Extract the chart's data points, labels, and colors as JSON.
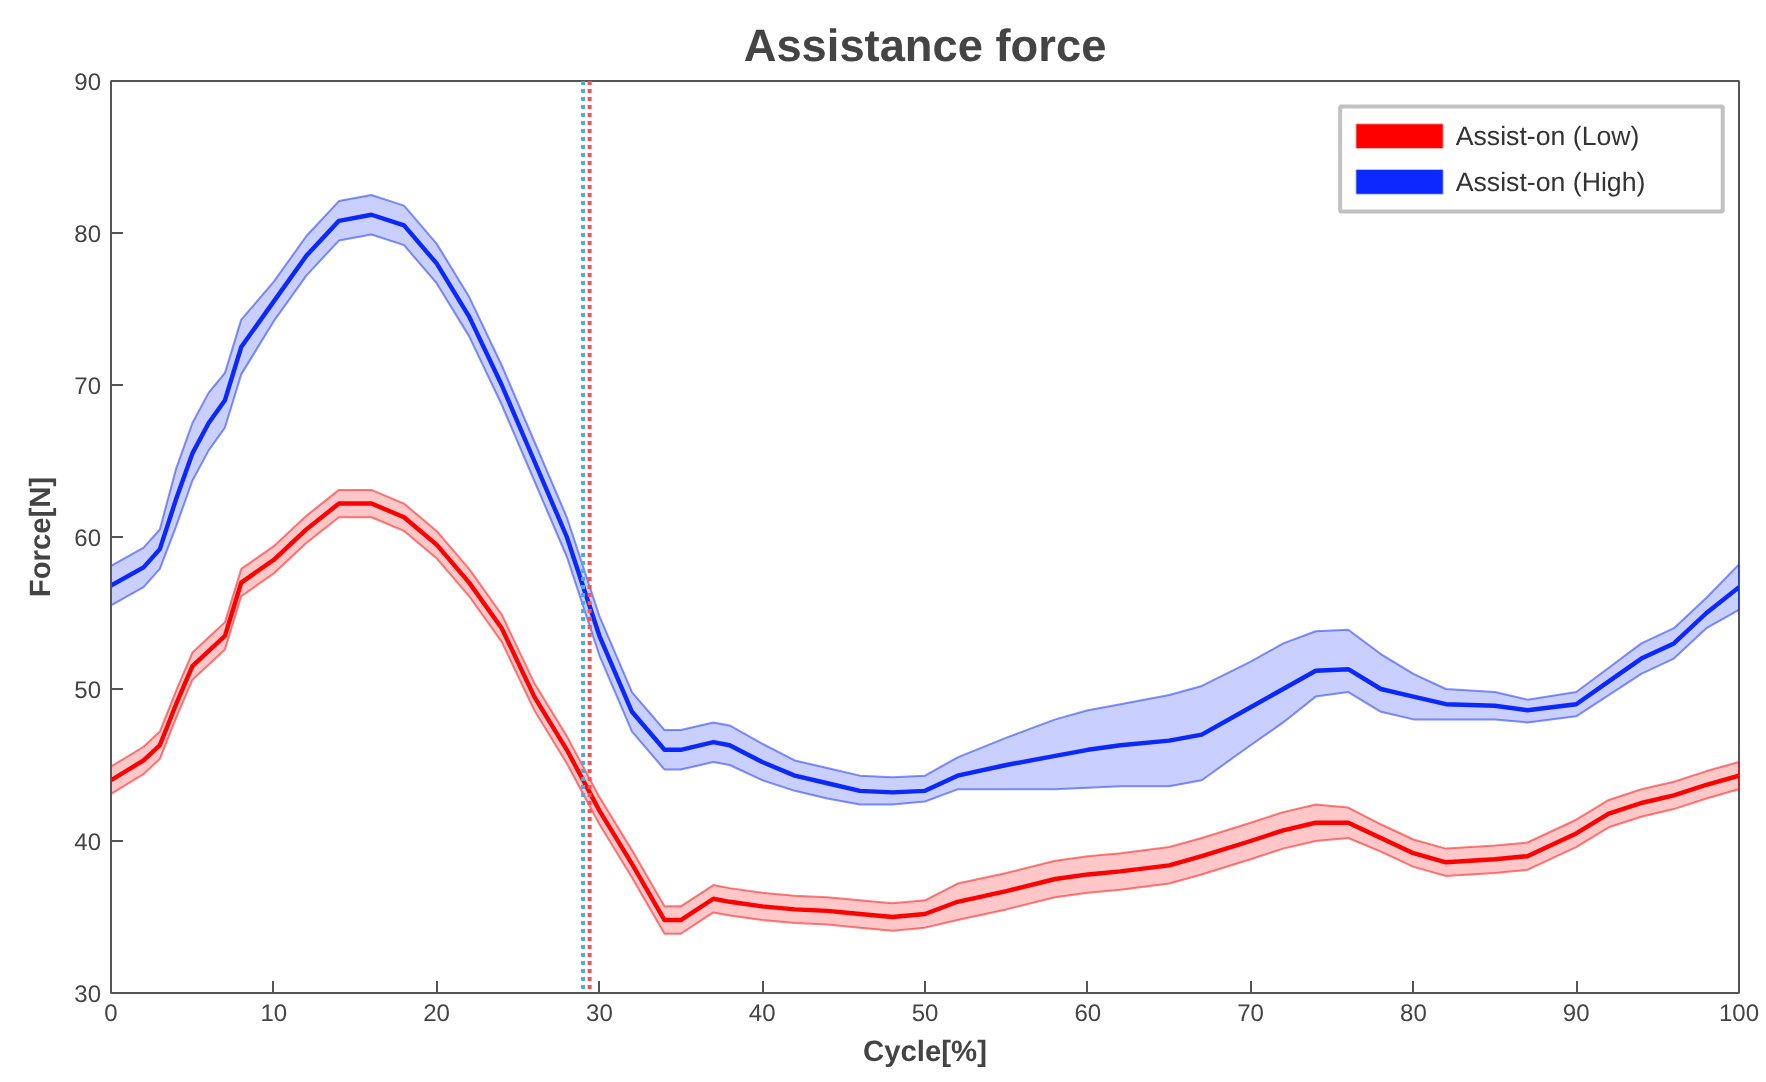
{
  "chart_data": {
    "type": "line",
    "title": "Assistance force",
    "xlabel": "Cycle[%]",
    "ylabel": "Force[N]",
    "xlim": [
      0,
      100
    ],
    "ylim": [
      30,
      90
    ],
    "xticks": [
      0,
      10,
      20,
      30,
      40,
      50,
      60,
      70,
      80,
      90,
      100
    ],
    "yticks": [
      30,
      40,
      50,
      60,
      70,
      80,
      90
    ],
    "grid": false,
    "legend": "top right",
    "line_style": "solid",
    "marker": "none",
    "x": [
      0,
      2,
      3,
      4,
      5,
      6,
      7,
      8,
      10,
      12,
      14,
      16,
      18,
      20,
      22,
      24,
      26,
      28,
      30,
      32,
      34,
      35,
      37,
      38,
      40,
      42,
      44,
      46,
      48,
      50,
      52,
      55,
      58,
      60,
      62,
      65,
      67,
      70,
      72,
      74,
      76,
      78,
      80,
      82,
      85,
      87,
      90,
      92,
      94,
      96,
      98,
      100
    ],
    "series": [
      {
        "name": "Assist-on (Low)",
        "color": "#ff0000",
        "values": [
          44,
          45.3,
          46.3,
          49,
          51.5,
          52.5,
          53.5,
          57,
          58.5,
          60.5,
          62.2,
          62.2,
          61.3,
          59.5,
          57,
          54,
          49.5,
          46,
          42,
          38.5,
          34.8,
          34.8,
          36.2,
          36,
          35.7,
          35.5,
          35.4,
          35.2,
          35.0,
          35.2,
          36,
          36.7,
          37.5,
          37.8,
          38,
          38.4,
          39,
          40,
          40.7,
          41.2,
          41.2,
          40.2,
          39.2,
          38.6,
          38.8,
          39,
          40.5,
          41.8,
          42.5,
          43,
          43.7,
          44.3
        ],
        "lower": [
          43.1,
          44.4,
          45.4,
          48.1,
          50.6,
          51.6,
          52.6,
          56.1,
          57.6,
          59.6,
          61.3,
          61.3,
          60.4,
          58.6,
          56.1,
          53.1,
          48.6,
          45.1,
          41.1,
          37.6,
          33.9,
          33.9,
          35.3,
          35.1,
          34.8,
          34.6,
          34.5,
          34.3,
          34.1,
          34.3,
          34.8,
          35.5,
          36.3,
          36.6,
          36.8,
          37.2,
          37.8,
          38.8,
          39.5,
          40,
          40.2,
          39.3,
          38.3,
          37.7,
          37.9,
          38.1,
          39.6,
          40.9,
          41.6,
          42.1,
          42.8,
          43.4
        ],
        "upper": [
          44.9,
          46.2,
          47.2,
          49.9,
          52.4,
          53.4,
          54.4,
          57.9,
          59.4,
          61.4,
          63.1,
          63.1,
          62.2,
          60.4,
          57.9,
          54.9,
          50.4,
          46.9,
          42.9,
          39.4,
          35.7,
          35.7,
          37.1,
          36.9,
          36.6,
          36.4,
          36.3,
          36.1,
          35.9,
          36.1,
          37.2,
          37.9,
          38.7,
          39,
          39.2,
          39.6,
          40.2,
          41.2,
          41.9,
          42.4,
          42.2,
          41.1,
          40.1,
          39.5,
          39.7,
          39.9,
          41.4,
          42.7,
          43.4,
          43.9,
          44.6,
          45.2
        ]
      },
      {
        "name": "Assist-on (High)",
        "color": "#0a28ff",
        "values": [
          56.8,
          58,
          59.2,
          62.5,
          65.5,
          67.5,
          69,
          72.5,
          75.5,
          78.5,
          80.8,
          81.2,
          80.5,
          78,
          74.5,
          70,
          65,
          60,
          53.5,
          48.5,
          46,
          46,
          46.5,
          46.3,
          45.2,
          44.3,
          43.8,
          43.3,
          43.2,
          43.3,
          44.3,
          45,
          45.6,
          46,
          46.3,
          46.6,
          47,
          48.8,
          50,
          51.2,
          51.3,
          50,
          49.5,
          49,
          48.9,
          48.6,
          49,
          50.5,
          52,
          53,
          55,
          56.7
        ],
        "lower": [
          55.5,
          56.7,
          57.9,
          60.7,
          63.7,
          65.7,
          67.2,
          70.7,
          74.2,
          77.2,
          79.5,
          79.9,
          79.2,
          76.7,
          73.2,
          68.7,
          63.7,
          58.7,
          52.2,
          47.2,
          44.7,
          44.7,
          45.2,
          45,
          44,
          43.3,
          42.8,
          42.4,
          42.4,
          42.6,
          43.4,
          43.4,
          43.4,
          43.5,
          43.6,
          43.6,
          44,
          46.3,
          47.8,
          49.5,
          49.8,
          48.5,
          48,
          48,
          48,
          47.8,
          48.2,
          49.6,
          51,
          52,
          54,
          55.2
        ],
        "upper": [
          58.1,
          59.3,
          60.5,
          64.5,
          67.5,
          69.5,
          70.8,
          74.3,
          76.8,
          79.8,
          82.1,
          82.5,
          81.8,
          79.3,
          75.8,
          71.3,
          66.3,
          61.3,
          54.8,
          49.8,
          47.3,
          47.3,
          47.8,
          47.6,
          46.4,
          45.3,
          44.8,
          44.3,
          44.2,
          44.3,
          45.5,
          46.8,
          48,
          48.6,
          49,
          49.6,
          50.2,
          51.8,
          53,
          53.8,
          53.9,
          52.3,
          51,
          50,
          49.8,
          49.3,
          49.8,
          51.4,
          53,
          54,
          56,
          58.2
        ]
      }
    ],
    "ref_lines": [
      {
        "axis": "x",
        "value": 29.0,
        "color": "#4fa8e0",
        "line_style": "dotted"
      },
      {
        "axis": "x",
        "value": 29.4,
        "color": "#ff5050",
        "line_style": "dotted"
      }
    ]
  }
}
